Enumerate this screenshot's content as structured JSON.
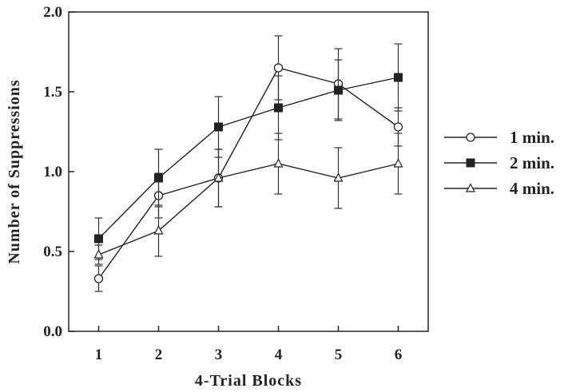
{
  "chart_data": {
    "type": "line",
    "title": "",
    "xlabel": "4-Trial  Blocks",
    "ylabel": "Number  of  Suppressions",
    "x": [
      1,
      2,
      3,
      4,
      5,
      6
    ],
    "x_tick_labels": [
      "1",
      "2",
      "3",
      "4",
      "5",
      "6"
    ],
    "xlim": [
      0.5,
      6.5
    ],
    "ylim": [
      0,
      2
    ],
    "y_ticks": [
      0,
      0.5,
      1,
      1.5,
      2
    ],
    "y_tick_labels": [
      "0.0",
      "0.5",
      "1.0",
      "1.5",
      "2.0"
    ],
    "grid": false,
    "legend_position": "right",
    "series": [
      {
        "name": "1 min.",
        "marker": "open-circle",
        "values": [
          0.33,
          0.85,
          0.96,
          1.65,
          1.55,
          1.28
        ],
        "errors": [
          0.08,
          0.14,
          0.18,
          0.2,
          0.22,
          0.12
        ]
      },
      {
        "name": "2 min.",
        "marker": "filled-square",
        "values": [
          0.58,
          0.96,
          1.28,
          1.4,
          1.51,
          1.59
        ],
        "errors": [
          0.13,
          0.18,
          0.19,
          0.2,
          0.19,
          0.21
        ]
      },
      {
        "name": "4 min.",
        "marker": "open-triangle",
        "values": [
          0.48,
          0.63,
          0.96,
          1.05,
          0.96,
          1.05
        ],
        "errors": [
          0.06,
          0.16,
          0.18,
          0.19,
          0.19,
          0.19
        ]
      }
    ]
  }
}
